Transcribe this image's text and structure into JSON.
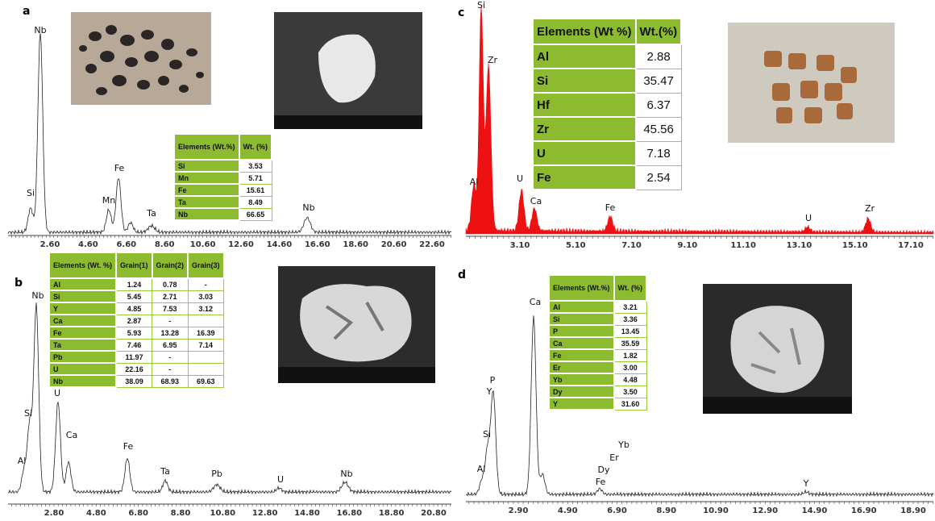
{
  "panels": [
    {
      "label": "a",
      "x_ticks": [
        "2.60",
        "4.60",
        "6.60",
        "8.60",
        "10.60",
        "12.60",
        "14.60",
        "16.60",
        "18.60",
        "20.60",
        "22.60"
      ],
      "peaks": [
        "Nb",
        "Si",
        "Mn",
        "Fe",
        "Ta",
        "Nb"
      ],
      "table": {
        "header": [
          "Elements (Wt.%)",
          "Wt. (%)"
        ],
        "rows": [
          [
            "Si",
            "3.53"
          ],
          [
            "Mn",
            "5.71"
          ],
          [
            "Fe",
            "15.61"
          ],
          [
            "Ta",
            "8.49"
          ],
          [
            "Nb",
            "66.65"
          ]
        ]
      }
    },
    {
      "label": "b",
      "x_ticks": [
        "2.80",
        "4.80",
        "6.80",
        "8.80",
        "10.80",
        "12.80",
        "14.80",
        "16.80",
        "18.80",
        "20.80"
      ],
      "peaks": [
        "Nb",
        "Si",
        "U",
        "Al",
        "Ca",
        "Fe",
        "Ta",
        "Pb",
        "U",
        "Nb"
      ],
      "table": {
        "header": [
          "Elements (Wt. %)",
          "Grain(1)",
          "Grain(2)",
          "Grain(3)"
        ],
        "rows": [
          [
            "Al",
            "1.24",
            "0.78",
            "-"
          ],
          [
            "Si",
            "5.45",
            "2.71",
            "3.03"
          ],
          [
            "Y",
            "4.85",
            "7.53",
            "3.12"
          ],
          [
            "Ca",
            "2.87",
            "-",
            ""
          ],
          [
            "Fe",
            "5.93",
            "13.28",
            "16.39"
          ],
          [
            "Ta",
            "7.46",
            "6.95",
            "7.14"
          ],
          [
            "Pb",
            "11.97",
            "-",
            ""
          ],
          [
            "U",
            "22.16",
            "-",
            ""
          ],
          [
            "Nb",
            "38.09",
            "68.93",
            "69.63"
          ]
        ]
      }
    },
    {
      "label": "c",
      "x_ticks": [
        "3.10",
        "5.10",
        "7.10",
        "9.10",
        "11.10",
        "13.10",
        "15.10",
        "17.10"
      ],
      "peaks": [
        "Si",
        "Zr",
        "Al",
        "U",
        "Ca",
        "Fe",
        "U",
        "Zr"
      ],
      "table": {
        "header": [
          "Elements (Wt %)",
          "Wt.(%)"
        ],
        "rows": [
          [
            "Al",
            "2.88"
          ],
          [
            "Si",
            "35.47"
          ],
          [
            "Hf",
            "6.37"
          ],
          [
            "Zr",
            "45.56"
          ],
          [
            "U",
            "7.18"
          ],
          [
            "Fe",
            "2.54"
          ]
        ]
      }
    },
    {
      "label": "d",
      "x_ticks": [
        "2.90",
        "4.90",
        "6.90",
        "8.90",
        "10.90",
        "12.90",
        "14.90",
        "16.90",
        "18.90"
      ],
      "peaks": [
        "Ca",
        "P",
        "Y",
        "Si",
        "Al",
        "Dy",
        "Fe",
        "Er",
        "Yb",
        "Y"
      ],
      "table": {
        "header": [
          "Elements (Wt.%)",
          "Wt. (%)"
        ],
        "rows": [
          [
            "Al",
            "3.21"
          ],
          [
            "Si",
            "3.36"
          ],
          [
            "P",
            "13.45"
          ],
          [
            "Ca",
            "35.59"
          ],
          [
            "Fe",
            "1.82"
          ],
          [
            "Er",
            "3.00"
          ],
          [
            "Yb",
            "4.48"
          ],
          [
            "Dy",
            "3.50"
          ],
          [
            "Y",
            "31.60"
          ]
        ]
      }
    }
  ]
}
